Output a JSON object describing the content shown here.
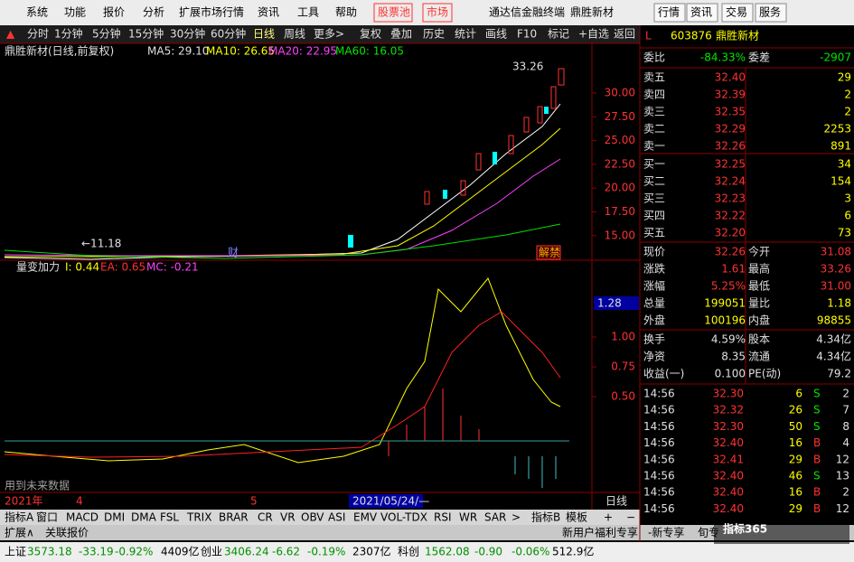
{
  "menu": {
    "items": [
      "系统",
      "功能",
      "报价",
      "分析",
      "扩展市场行情",
      "资讯",
      "工具",
      "帮助",
      "股票池",
      "市场"
    ],
    "terminal": "通达信金融终端",
    "stock": "鼎胜新材",
    "buttons": [
      "行情",
      "资讯",
      "交易",
      "服务"
    ]
  },
  "toolbar": [
    "分时",
    "1分钟",
    "5分钟",
    "15分钟",
    "30分钟",
    "60分钟",
    "日线",
    "周线",
    "更多>",
    "复权",
    "叠加",
    "历史",
    "统计",
    "画线",
    "F10",
    "标记",
    "+自选",
    "返回"
  ],
  "price_chart": {
    "title": "鼎胜新材(日线,前复权)",
    "ma": [
      "MA5: 29.10",
      "MA10: 26.65",
      "MA20: 22.95",
      "MA60: 16.05"
    ],
    "high_label": "33.26",
    "low_label": "←11.18",
    "marks": [
      "财",
      "解禁"
    ],
    "yticks": [
      {
        "value": 30,
        "label": "30.00"
      },
      {
        "value": 27.5,
        "label": "27.50"
      },
      {
        "value": 25,
        "label": "25.00"
      },
      {
        "value": 22.5,
        "label": "22.50"
      },
      {
        "value": 20,
        "label": "20.00"
      },
      {
        "value": 17.5,
        "label": "17.50"
      },
      {
        "value": 15,
        "label": "15.00"
      }
    ]
  },
  "indicator": {
    "name": "量变加力",
    "values": [
      "I: 0.44",
      "EA: 0.65",
      "MC: -0.21"
    ],
    "current": 1.28,
    "yticks": [
      {
        "value": 1,
        "label": "1.00"
      },
      {
        "value": 0.75,
        "label": "0.75"
      },
      {
        "value": 0.5,
        "label": "0.50"
      }
    ],
    "note": "用到未来数据"
  },
  "time_axis": [
    "2021年",
    "4",
    "5",
    "2021/05/24/—",
    "日线"
  ],
  "tabs": [
    "指标A",
    "窗口",
    "MACD",
    "DMI",
    "DMA",
    "FSL",
    "TRIX",
    "BRAR",
    "CR",
    "VR",
    "OBV",
    "ASI",
    "EMV",
    "VOL-TDX",
    "RSI",
    "WR",
    "SAR",
    ">",
    "指标B",
    "模板",
    "+",
    "−"
  ],
  "subtabs": [
    "扩展∧",
    "关联报价",
    "新用户福利专享",
    "-新专享",
    "旬专"
  ],
  "quote": {
    "flag": "L",
    "code": "603876",
    "name": "鼎胜新材",
    "ratio": [
      "委比",
      "-84.33%",
      "委差",
      "-2907"
    ],
    "asks": [
      [
        "卖五",
        "32.40",
        "29"
      ],
      [
        "卖四",
        "32.39",
        "2"
      ],
      [
        "卖三",
        "32.35",
        "2"
      ],
      [
        "卖二",
        "32.29",
        "2253"
      ],
      [
        "卖一",
        "32.26",
        "891"
      ]
    ],
    "bids": [
      [
        "买一",
        "32.25",
        "34"
      ],
      [
        "买二",
        "32.24",
        "154"
      ],
      [
        "买三",
        "32.23",
        "3"
      ],
      [
        "买四",
        "32.22",
        "6"
      ],
      [
        "买五",
        "32.20",
        "73"
      ]
    ],
    "stats": [
      [
        "现价",
        "32.26",
        "今开",
        "31.08"
      ],
      [
        "涨跌",
        "1.61",
        "最高",
        "33.26"
      ],
      [
        "涨幅",
        "5.25%",
        "最低",
        "31.00"
      ],
      [
        "总量",
        "199051",
        "量比",
        "1.18"
      ],
      [
        "外盘",
        "100196",
        "内盘",
        "98855"
      ]
    ],
    "fundamentals": [
      [
        "换手",
        "4.59%",
        "股本",
        "4.34亿"
      ],
      [
        "净资",
        "8.35",
        "流通",
        "4.34亿"
      ],
      [
        "收益(一)",
        "0.100",
        "PE(动)",
        "79.2"
      ]
    ],
    "trades": [
      [
        "14:56",
        "32.30",
        "6",
        "S",
        "2"
      ],
      [
        "14:56",
        "32.32",
        "26",
        "S",
        "7"
      ],
      [
        "14:56",
        "32.30",
        "50",
        "S",
        "8"
      ],
      [
        "14:56",
        "32.40",
        "16",
        "B",
        "4"
      ],
      [
        "14:56",
        "32.41",
        "29",
        "B",
        "12"
      ],
      [
        "14:56",
        "32.40",
        "46",
        "S",
        "13"
      ],
      [
        "14:56",
        "32.40",
        "16",
        "B",
        "2"
      ],
      [
        "14:56",
        "32.40",
        "29",
        "B",
        "12"
      ]
    ]
  },
  "status": [
    [
      "上证",
      "3573.18",
      "-33.19",
      "-0.92%",
      "4409亿"
    ],
    [
      "创业",
      "3406.24",
      "-6.62",
      "-0.19%",
      "2307亿"
    ],
    [
      "科创",
      "1562.08",
      "-0.90",
      "-0.06%",
      "512.9亿"
    ]
  ],
  "watermark": "指标365"
}
